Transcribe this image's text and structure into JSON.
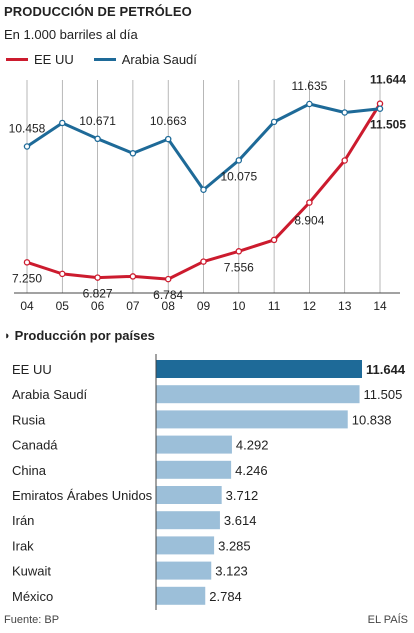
{
  "header": {
    "title": "PRODUCCIÓN DE PETRÓLEO",
    "subtitle": "En  1.000 barriles al día"
  },
  "colors": {
    "usa": "#cc1b2e",
    "saudi": "#1e6a98",
    "bar_highlight": "#1e6a98",
    "bar_normal": "#9cbfd9",
    "grid": "#999999"
  },
  "chart_data": [
    {
      "type": "line",
      "x": [
        "04",
        "05",
        "06",
        "07",
        "08",
        "09",
        "10",
        "11",
        "12",
        "13",
        "14"
      ],
      "series": [
        {
          "name": "EE UU",
          "values": [
            7250,
            6930,
            6827,
            6860,
            6784,
            7270,
            7556,
            7870,
            8904,
            10070,
            11644
          ],
          "labels": [
            "7.250",
            null,
            "6.827",
            null,
            "6.784",
            null,
            "7.556",
            null,
            "8.904",
            null,
            "11.644"
          ]
        },
        {
          "name": "Arabia Saudí",
          "values": [
            10458,
            11110,
            10671,
            10270,
            10663,
            9260,
            10075,
            11140,
            11635,
            11400,
            11505
          ],
          "labels": [
            "10.458",
            null,
            "10.671",
            null,
            "10.663",
            null,
            "10.075",
            null,
            "11.635",
            null,
            "11.505"
          ]
        }
      ],
      "ylim": [
        6400,
        12300
      ],
      "grid": "vertical"
    },
    {
      "type": "bar",
      "title": "Producción por países",
      "categories": [
        "EE UU",
        "Arabia Saudí",
        "Rusia",
        "Canadá",
        "China",
        "Emiratos Árabes Unidos",
        "Irán",
        "Irak",
        "Kuwait",
        "México"
      ],
      "values": [
        11644,
        11505,
        10838,
        4292,
        4246,
        3712,
        3614,
        3285,
        3123,
        2784
      ],
      "value_labels": [
        "11.644",
        "11.505",
        "10.838",
        "4.292",
        "4.246",
        "3.712",
        "3.614",
        "3.285",
        "3.123",
        "2.784"
      ],
      "highlight": "EE UU"
    }
  ],
  "footer": {
    "source": "Fuente: BP",
    "brand": "EL PAÍS"
  }
}
